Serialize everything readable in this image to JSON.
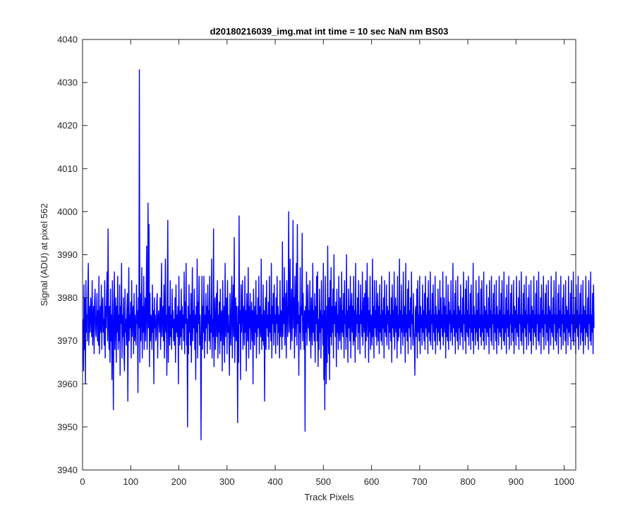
{
  "figure": {
    "title": "d20180216039_img.mat int time = 10 sec  NaN nm BS03"
  },
  "colors": {
    "series": "#0000ff",
    "axes": "#262626",
    "background": "#ffffff"
  },
  "chart_data": {
    "type": "line",
    "title": "d20180216039_img.mat int time = 10 sec  NaN nm BS03",
    "xlabel": "Track Pixels",
    "ylabel": "Signal (ADU) at pixel 562",
    "xlim": [
      0,
      1024
    ],
    "ylim": [
      3940,
      4040
    ],
    "xticks": [
      "0",
      "100",
      "200",
      "300",
      "400",
      "500",
      "600",
      "700",
      "800",
      "900",
      "1000"
    ],
    "yticks": [
      "3940",
      "3950",
      "3960",
      "3970",
      "3980",
      "3990",
      "4000",
      "4010",
      "4020",
      "4030",
      "4040"
    ],
    "grid": false,
    "legend": "none",
    "series": [
      {
        "color": "#0000ff",
        "x_start": 1,
        "x_step": 1,
        "values": [
          3975,
          3963,
          3983,
          3968,
          3980,
          3960,
          3984,
          3972,
          3976,
          3970,
          3981,
          3988,
          3969,
          3974,
          3978,
          3972,
          3980,
          3976,
          3971,
          3984,
          3969,
          3975,
          3978,
          3967,
          3979,
          3982,
          3973,
          3971,
          3976,
          3981,
          3970,
          3977,
          3969,
          3985,
          3967,
          3974,
          3978,
          3972,
          3983,
          3968,
          3977,
          3980,
          3972,
          3975,
          3969,
          3984,
          3966,
          3978,
          3973,
          3981,
          3986,
          3970,
          3996,
          3974,
          3968,
          3978,
          3965,
          3982,
          3970,
          3976,
          3961,
          3984,
          3972,
          3954,
          3978,
          3986,
          3968,
          3974,
          3980,
          3965,
          3978,
          3972,
          3985,
          3968,
          3976,
          3970,
          3983,
          3962,
          3978,
          3974,
          3988,
          3966,
          3976,
          3971,
          3980,
          3967,
          3963,
          3982,
          3972,
          3975,
          3969,
          3977,
          3981,
          3956,
          3974,
          3987,
          3970,
          3976,
          3973,
          3979,
          3966,
          3984,
          3971,
          3975,
          3978,
          3967,
          3981,
          3970,
          3976,
          3972,
          3969,
          3983,
          3974,
          3977,
          3958,
          3980,
          3973,
          4033,
          3965,
          3981,
          3970,
          3976,
          3987,
          3966,
          3978,
          3972,
          3985,
          3968,
          3975,
          3980,
          3970,
          3977,
          3992,
          3968,
          3976,
          4002,
          3973,
          3997,
          3964,
          3981,
          3970,
          3976,
          3975,
          3968,
          3983,
          3972,
          3977,
          3960,
          3980,
          3973,
          3976,
          3970,
          3971,
          3979,
          3981,
          3966,
          3975,
          3977,
          3974,
          3972,
          3980,
          3968,
          3975,
          3988,
          3971,
          3976,
          3978,
          3970,
          3983,
          3966,
          3975,
          3989,
          3972,
          3976,
          3962,
          3981,
          3998,
          3965,
          3975,
          3978,
          3969,
          3984,
          3971,
          3976,
          3968,
          3982,
          3973,
          3977,
          3970,
          3975,
          3969,
          3980,
          3965,
          3983,
          3972,
          3976,
          3971,
          3978,
          3960,
          3985,
          3974,
          3969,
          3977,
          3971,
          3982,
          3968,
          3978,
          3973,
          3976,
          3970,
          3986,
          3967,
          3979,
          3974,
          3988,
          3969,
          3975,
          3950,
          3978,
          3967,
          3983,
          3972,
          3976,
          3969,
          3981,
          3965,
          3975,
          3987,
          3970,
          3977,
          3973,
          3982,
          3968,
          3976,
          3961,
          3978,
          3972,
          3989,
          3966,
          3979,
          3974,
          3985,
          3969,
          3976,
          3970,
          3947,
          3974,
          3985,
          3968,
          3978,
          3972,
          3985,
          3966,
          3976,
          3970,
          3981,
          3973,
          3978,
          3967,
          3983,
          3974,
          3977,
          3970,
          3985,
          3968,
          3976,
          3972,
          3989,
          3966,
          3975,
          3971,
          3996,
          3964,
          3975,
          3980,
          3968,
          3974,
          3981,
          3971,
          3984,
          3966,
          3976,
          3972,
          3979,
          3967,
          3982,
          3970,
          3975,
          3977,
          3963,
          3984,
          3974,
          3969,
          3978,
          3965,
          3988,
          3971,
          3975,
          3980,
          3967,
          3984,
          3972,
          3976,
          3970,
          3962,
          3981,
          3974,
          3969,
          3979,
          3985,
          3966,
          3976,
          3983,
          3971,
          3994,
          3965,
          3975,
          3980,
          3970,
          3978,
          3972,
          3951,
          3978,
          3965,
          3999,
          3974,
          3977,
          3961,
          3983,
          3972,
          3976,
          3984,
          3968,
          3978,
          3975,
          3969,
          3985,
          3972,
          3977,
          3963,
          3981,
          3974,
          3970,
          3987,
          3966,
          3978,
          3973,
          3981,
          3968,
          3975,
          3979,
          3970,
          3977,
          3960,
          3982,
          3974,
          3969,
          3978,
          3972,
          3984,
          3966,
          3976,
          3971,
          3980,
          3973,
          3985,
          3967,
          3978,
          3974,
          3971,
          3989,
          3968,
          3976,
          3970,
          3983,
          3969,
          3977,
          3956,
          3975,
          3980,
          3968,
          3984,
          3973,
          3976,
          3971,
          3979,
          3968,
          3985,
          3972,
          3976,
          3970,
          3988,
          3966,
          3978,
          3974,
          3981,
          3969,
          3983,
          3972,
          3976,
          3967,
          3980,
          3974,
          3985,
          3969,
          3978,
          3972,
          3976,
          3966,
          3984,
          3971,
          3977,
          3975,
          3968,
          3993,
          3971,
          3980,
          3974,
          3987,
          3969,
          3976,
          3981,
          3966,
          3984,
          3977,
          3971,
          3978,
          4000,
          3972,
          3975,
          3989,
          3968,
          3975,
          3982,
          3970,
          3977,
          3998,
          3973,
          3980,
          3966,
          3985,
          3971,
          3975,
          3988,
          3969,
          3997,
          3974,
          3979,
          3962,
          3976,
          3972,
          3987,
          3968,
          3978,
          3976,
          3995,
          3970,
          3981,
          3974,
          3968,
          3977,
          3949,
          3978,
          3972,
          3986,
          3969,
          3976,
          3983,
          3973,
          3977,
          3970,
          3984,
          3974,
          3966,
          3980,
          3975,
          3969,
          3988,
          3972,
          3977,
          3970,
          3981,
          3965,
          3978,
          3974,
          3985,
          3970,
          3986,
          3964,
          3975,
          3968,
          3982,
          3972,
          3977,
          3966,
          3984,
          3973,
          3976,
          3969,
          3988,
          3961,
          3977,
          3954,
          3985,
          3972,
          3960,
          3978,
          3965,
          3992,
          3974,
          3967,
          3980,
          3961,
          3984,
          3971,
          3987,
          3969,
          3978,
          3972,
          3982,
          3966,
          3990,
          3974,
          3978,
          3971,
          3979,
          3964,
          3982,
          3972,
          3976,
          3968,
          3985,
          3973,
          3970,
          3980,
          3975,
          3968,
          3986,
          3972,
          3977,
          3971,
          3981,
          3966,
          3984,
          3974,
          3976,
          3968,
          3990,
          3971,
          3977,
          3965,
          3982,
          3973,
          3978,
          3970,
          3985,
          3966,
          3976,
          3981,
          3972,
          3978,
          3969,
          3985,
          3970,
          3977,
          3965,
          3988,
          3971,
          3976,
          3974,
          3980,
          3968,
          3984,
          3972,
          3976,
          3967,
          3983,
          3974,
          3977,
          3971,
          3986,
          3969,
          3975,
          3980,
          3972,
          3981,
          3966,
          3984,
          3970,
          3976,
          3988,
          3971,
          3980,
          3965,
          3977,
          3972,
          3985,
          3968,
          3976,
          3974,
          3969,
          3989,
          3971,
          3978,
          3966,
          3984,
          3973,
          3977,
          3971,
          3984,
          3969,
          3976,
          3981,
          3970,
          3978,
          3967,
          3983,
          3972,
          3976,
          3970,
          3985,
          3969,
          3977,
          3973,
          3980,
          3966,
          3984,
          3972,
          3976,
          3971,
          3983,
          3969,
          3978,
          3974,
          3977,
          3968,
          3986,
          3972,
          3976,
          3970,
          3980,
          3965,
          3983,
          3973,
          3977,
          3971,
          3986,
          3968,
          3975,
          3980,
          3972,
          3978,
          3966,
          3985,
          3970,
          3976,
          3971,
          3989,
          3973,
          3977,
          3967,
          3983,
          3972,
          3976,
          3969,
          3986,
          3974,
          3971,
          3978,
          3965,
          3988,
          3972,
          3976,
          3970,
          3982,
          3967,
          3984,
          3973,
          3977,
          3971,
          3980,
          3968,
          3986,
          3974,
          3976,
          3969,
          3981,
          3972,
          3970,
          3962,
          3977,
          3978,
          3971,
          3982,
          3966,
          3984,
          3972,
          3976,
          3970,
          3985,
          3967,
          3978,
          3973,
          3976,
          3969,
          3983,
          3972,
          3977,
          3970,
          3981,
          3968,
          3985,
          3973,
          3976,
          3971,
          3980,
          3967,
          3984,
          3972,
          3977,
          3970,
          3986,
          3969,
          3976,
          3974,
          3981,
          3968,
          3983,
          3972,
          3976,
          3970,
          3985,
          3967,
          3978,
          3973,
          3976,
          3969,
          3982,
          3972,
          3977,
          3970,
          3984,
          3968,
          3980,
          3973,
          3976,
          3971,
          3986,
          3969,
          3975,
          3980,
          3972,
          3978,
          3966,
          3985,
          3971,
          3976,
          3970,
          3983,
          3968,
          3979,
          3974,
          3977,
          3970,
          3984,
          3972,
          3976,
          3969,
          3988,
          3973,
          3977,
          3971,
          3981,
          3967,
          3984,
          3972,
          3976,
          3970,
          3985,
          3968,
          3978,
          3973,
          3977,
          3969,
          3983,
          3972,
          3976,
          3971,
          3980,
          3968,
          3986,
          3974,
          3976,
          3970,
          3982,
          3967,
          3984,
          3972,
          3977,
          3971,
          3985,
          3969,
          3976,
          3973,
          3981,
          3968,
          3983,
          3972,
          3976,
          3970,
          3988,
          3967,
          3978,
          3973,
          3976,
          3969,
          3984,
          3972,
          3977,
          3970,
          3981,
          3968,
          3985,
          3973,
          3976,
          3971,
          3982,
          3969,
          3984,
          3972,
          3976,
          3970,
          3986,
          3968,
          3978,
          3973,
          3977,
          3969,
          3983,
          3972,
          3976,
          3971,
          3980,
          3967,
          3984,
          3973,
          3977,
          3970,
          3985,
          3969,
          3976,
          3974,
          3981,
          3968,
          3983,
          3972,
          3976,
          3970,
          3984,
          3967,
          3978,
          3973,
          3976,
          3969,
          3985,
          3972,
          3977,
          3971,
          3981,
          3968,
          3984,
          3973,
          3976,
          3970,
          3986,
          3969,
          3976,
          3972,
          3980,
          3967,
          3983,
          3973,
          3977,
          3971,
          3985,
          3968,
          3976,
          3974,
          3981,
          3969,
          3983,
          3972,
          3976,
          3970,
          3984,
          3967,
          3978,
          3973,
          3977,
          3969,
          3985,
          3972,
          3976,
          3971,
          3980,
          3968,
          3984,
          3974,
          3976,
          3970,
          3986,
          3969,
          3976,
          3972,
          3981,
          3967,
          3983,
          3973,
          3977,
          3971,
          3985,
          3968,
          3976,
          3974,
          3980,
          3969,
          3983,
          3972,
          3976,
          3970,
          3984,
          3967,
          3978,
          3973,
          3977,
          3969,
          3985,
          3972,
          3976,
          3971,
          3981,
          3968,
          3984,
          3974,
          3976,
          3970,
          3986,
          3969,
          3976,
          3972,
          3980,
          3967,
          3983,
          3973,
          3977,
          3971,
          3985,
          3968,
          3976,
          3974,
          3981,
          3969,
          3983,
          3972,
          3976,
          3970,
          3984,
          3967,
          3978,
          3973,
          3977,
          3969,
          3985,
          3972,
          3976,
          3971,
          3980,
          3968,
          3984,
          3974,
          3976,
          3970,
          3986,
          3969,
          3976,
          3972,
          3981,
          3967,
          3983,
          3973,
          3977,
          3971,
          3985,
          3968,
          3976,
          3974,
          3980,
          3969,
          3983,
          3972,
          3976,
          3970,
          3984,
          3967,
          3978,
          3973,
          3977,
          3969,
          3985,
          3972,
          3976,
          3971,
          3981,
          3968,
          3984,
          3974,
          3976,
          3970,
          3986,
          3969,
          3976,
          3972,
          3980,
          3967,
          3983,
          3973,
          3977,
          3971,
          3985,
          3968,
          3976,
          3974,
          3981,
          3969,
          3983,
          3972,
          3976,
          3970,
          3984,
          3967,
          3978,
          3973,
          3977,
          3969,
          3985,
          3972,
          3976,
          3971,
          3980,
          3968,
          3984,
          3974,
          3976,
          3970,
          3986,
          3969,
          3976,
          3972,
          3981,
          3967,
          3983,
          3973
        ]
      }
    ]
  }
}
